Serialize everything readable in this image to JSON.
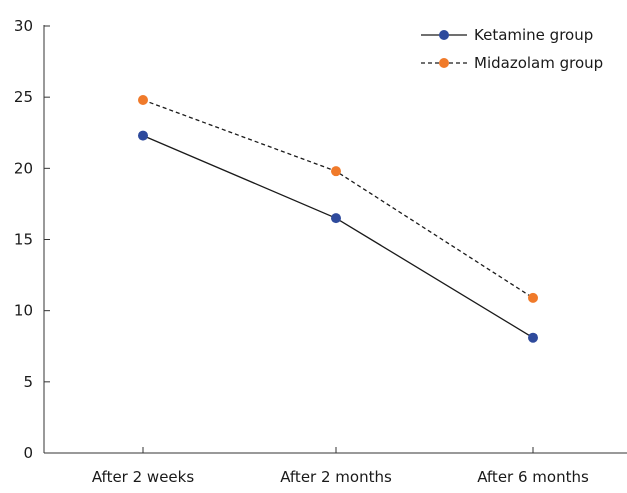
{
  "chart_data": {
    "type": "line",
    "title": "",
    "xlabel": "",
    "ylabel": "",
    "categories": [
      "After 2 weeks",
      "After 2 months",
      "After 6 months"
    ],
    "ylim": [
      0,
      30
    ],
    "yticks": [
      0,
      5,
      10,
      15,
      20,
      25,
      30
    ],
    "grid": false,
    "legend_position": "top-right",
    "series": [
      {
        "name": "Ketamine group",
        "values": [
          22.3,
          16.5,
          8.1
        ],
        "color": "#2e4a9c",
        "line_style": "solid"
      },
      {
        "name": "Midazolam group",
        "values": [
          24.8,
          19.8,
          10.9
        ],
        "color": "#f07a2a",
        "line_style": "dashed"
      }
    ]
  }
}
